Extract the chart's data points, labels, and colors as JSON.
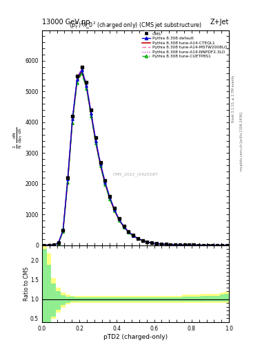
{
  "title_top": "13000 GeV pp",
  "title_right": "Z+Jet",
  "plot_title": "$(p_T^D)^2\\lambda\\_0^2$ (charged only) (CMS jet substructure)",
  "xlabel": "pTD2 (charged-only)",
  "watermark": "CMS_2021_I1920187",
  "rivet_text": "Rivet 3.1.10, ≥ 2.7M events",
  "mcplots_text": "mcplots.cern.ch [arXiv:1306.3436]",
  "xlim": [
    0,
    1
  ],
  "ylim_main": [
    0,
    7000
  ],
  "ylim_ratio": [
    0.4,
    2.4
  ],
  "ratio_yticks": [
    0.5,
    1.0,
    1.5,
    2.0
  ],
  "main_yticks": [
    0,
    1000,
    2000,
    3000,
    4000,
    5000,
    6000
  ],
  "bin_edges": [
    0.0,
    0.025,
    0.05,
    0.075,
    0.1,
    0.125,
    0.15,
    0.175,
    0.2,
    0.225,
    0.25,
    0.275,
    0.3,
    0.325,
    0.35,
    0.375,
    0.4,
    0.425,
    0.45,
    0.475,
    0.5,
    0.525,
    0.55,
    0.575,
    0.6,
    0.625,
    0.65,
    0.675,
    0.7,
    0.725,
    0.75,
    0.775,
    0.8,
    0.825,
    0.85,
    0.875,
    0.9,
    0.925,
    0.95,
    0.975,
    1.0
  ],
  "cms_y": [
    2,
    5,
    10,
    80,
    500,
    2200,
    4200,
    5500,
    5800,
    5300,
    4400,
    3500,
    2700,
    2100,
    1600,
    1200,
    870,
    630,
    455,
    325,
    230,
    162,
    114,
    80,
    57,
    41,
    30,
    22,
    17,
    13,
    10,
    7.8,
    6.0,
    4.8,
    3.8,
    3.0,
    2.4,
    1.9,
    1.5,
    1.1
  ],
  "default_y": [
    2,
    4,
    12,
    75,
    480,
    2150,
    4100,
    5400,
    5700,
    5200,
    4300,
    3400,
    2650,
    2050,
    1560,
    1160,
    840,
    610,
    440,
    315,
    224,
    158,
    111,
    78,
    56,
    40,
    29,
    21,
    16,
    12,
    9.2,
    7.1,
    5.5,
    4.3,
    3.4,
    2.7,
    2.1,
    1.7,
    1.3,
    1.0
  ],
  "cteql1_y": [
    2,
    4,
    11,
    72,
    470,
    2100,
    4050,
    5350,
    5650,
    5150,
    4250,
    3350,
    2600,
    2000,
    1520,
    1130,
    820,
    595,
    430,
    307,
    218,
    154,
    108,
    76,
    55,
    39,
    28,
    21,
    15.5,
    11.8,
    9.0,
    6.9,
    5.4,
    4.2,
    3.3,
    2.6,
    2.1,
    1.65,
    1.3,
    0.98
  ],
  "mstw_y": [
    2.5,
    5,
    13,
    80,
    500,
    2200,
    4150,
    5450,
    5750,
    5250,
    4350,
    3450,
    2680,
    2070,
    1570,
    1170,
    850,
    615,
    445,
    318,
    226,
    160,
    112,
    79,
    57,
    41,
    30,
    22,
    16.5,
    12.5,
    9.5,
    7.3,
    5.7,
    4.5,
    3.5,
    2.8,
    2.2,
    1.75,
    1.35,
    1.02
  ],
  "nnpdf_y": [
    2.5,
    5,
    13,
    79,
    498,
    2195,
    4145,
    5445,
    5745,
    5245,
    4345,
    3445,
    2675,
    2065,
    1565,
    1165,
    845,
    612,
    442,
    316,
    224,
    158,
    111,
    78,
    56,
    40,
    29,
    21.5,
    16,
    12.2,
    9.2,
    7.1,
    5.5,
    4.3,
    3.4,
    2.7,
    2.1,
    1.68,
    1.32,
    1.0
  ],
  "cuetp_y": [
    1.5,
    3.5,
    10,
    65,
    440,
    2050,
    3980,
    5280,
    5600,
    5100,
    4200,
    3320,
    2570,
    1980,
    1500,
    1115,
    806,
    583,
    420,
    300,
    212,
    150,
    105,
    74,
    53,
    38,
    28,
    20.5,
    15.3,
    11.6,
    8.8,
    6.8,
    5.3,
    4.1,
    3.2,
    2.6,
    2.0,
    1.6,
    1.25,
    0.95
  ],
  "green_band_lo": [
    0.35,
    0.4,
    0.55,
    0.72,
    0.84,
    0.9,
    0.93,
    0.94,
    0.94,
    0.94,
    0.94,
    0.94,
    0.94,
    0.94,
    0.94,
    0.94,
    0.94,
    0.94,
    0.94,
    0.94,
    0.94,
    0.94,
    0.94,
    0.94,
    0.94,
    0.94,
    0.94,
    0.94,
    0.94,
    0.94,
    0.94,
    0.94,
    0.94,
    0.94,
    0.94,
    0.94,
    0.94,
    0.94,
    0.94,
    0.94
  ],
  "green_band_hi": [
    2.3,
    1.9,
    1.4,
    1.2,
    1.1,
    1.07,
    1.06,
    1.05,
    1.05,
    1.05,
    1.05,
    1.05,
    1.05,
    1.05,
    1.05,
    1.05,
    1.05,
    1.05,
    1.05,
    1.05,
    1.05,
    1.05,
    1.05,
    1.05,
    1.05,
    1.05,
    1.05,
    1.05,
    1.05,
    1.05,
    1.07,
    1.07,
    1.07,
    1.07,
    1.09,
    1.09,
    1.09,
    1.09,
    1.11,
    1.13
  ],
  "yellow_band_lo": [
    0.3,
    0.35,
    0.48,
    0.65,
    0.78,
    0.86,
    0.9,
    0.91,
    0.91,
    0.91,
    0.91,
    0.91,
    0.91,
    0.91,
    0.91,
    0.91,
    0.91,
    0.91,
    0.91,
    0.91,
    0.91,
    0.91,
    0.91,
    0.91,
    0.91,
    0.91,
    0.91,
    0.91,
    0.91,
    0.91,
    0.91,
    0.91,
    0.91,
    0.91,
    0.91,
    0.91,
    0.91,
    0.91,
    0.91,
    0.91
  ],
  "yellow_band_hi": [
    2.5,
    2.2,
    1.55,
    1.3,
    1.18,
    1.12,
    1.09,
    1.08,
    1.08,
    1.08,
    1.08,
    1.08,
    1.08,
    1.08,
    1.08,
    1.08,
    1.08,
    1.08,
    1.08,
    1.08,
    1.08,
    1.08,
    1.08,
    1.08,
    1.08,
    1.08,
    1.08,
    1.08,
    1.08,
    1.08,
    1.11,
    1.11,
    1.11,
    1.11,
    1.14,
    1.14,
    1.14,
    1.14,
    1.17,
    1.19
  ],
  "colors": {
    "cms": "#000000",
    "default": "#0000cc",
    "cteql1": "#cc0000",
    "mstw": "#ff69b4",
    "nnpdf": "#dd00dd",
    "cuetp": "#00aa00",
    "green_band": "#90ee90",
    "yellow_band": "#ffff80",
    "background": "#ffffff"
  }
}
